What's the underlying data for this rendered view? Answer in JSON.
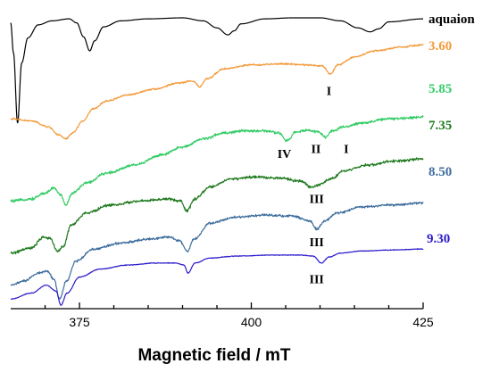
{
  "chart_data": {
    "type": "line",
    "title": "",
    "xlabel": "Magnetic field / mT",
    "ylabel": "",
    "xlim": [
      365,
      425
    ],
    "xticks": [
      375,
      400,
      425
    ],
    "grid": false,
    "legend": "none",
    "y_scale_note": "",
    "series": [
      {
        "name": "aquaion",
        "color": "#000000",
        "offset": 0,
        "noise": 0,
        "points": [
          [
            365,
            20
          ],
          [
            365.4,
            -10
          ],
          [
            366,
            -80
          ],
          [
            366.6,
            -20
          ],
          [
            367.5,
            5
          ],
          [
            369,
            18
          ],
          [
            371,
            22
          ],
          [
            373.5,
            24
          ],
          [
            374.6,
            20
          ],
          [
            375.6,
            6
          ],
          [
            376.5,
            -8
          ],
          [
            377.2,
            2
          ],
          [
            378.5,
            16
          ],
          [
            381,
            22
          ],
          [
            385,
            24
          ],
          [
            390,
            25
          ],
          [
            393,
            22
          ],
          [
            395,
            15
          ],
          [
            396.6,
            8
          ],
          [
            397.5,
            12
          ],
          [
            398.5,
            19
          ],
          [
            402,
            24
          ],
          [
            406,
            25
          ],
          [
            410,
            25
          ],
          [
            413,
            22
          ],
          [
            415.5,
            15
          ],
          [
            417.3,
            11
          ],
          [
            418.5,
            14
          ],
          [
            420,
            21
          ],
          [
            425,
            24
          ]
        ]
      },
      {
        "name": "3.60",
        "color": "#f39a3a",
        "offset": 0,
        "noise": 1.0,
        "points": [
          [
            365,
            -76
          ],
          [
            368,
            -78
          ],
          [
            370.5,
            -84
          ],
          [
            372,
            -92
          ],
          [
            373,
            -96
          ],
          [
            374,
            -90
          ],
          [
            375.5,
            -78
          ],
          [
            377,
            -66
          ],
          [
            379,
            -58
          ],
          [
            382,
            -52
          ],
          [
            386,
            -46
          ],
          [
            389.5,
            -40
          ],
          [
            391.5,
            -38
          ],
          [
            392.5,
            -44
          ],
          [
            393.5,
            -36
          ],
          [
            396,
            -26
          ],
          [
            400,
            -22
          ],
          [
            405,
            -21
          ],
          [
            408,
            -22
          ],
          [
            410.3,
            -23
          ],
          [
            411.5,
            -31
          ],
          [
            412.6,
            -22
          ],
          [
            415,
            -14
          ],
          [
            418,
            -8
          ],
          [
            422,
            -4
          ],
          [
            425,
            -2
          ]
        ]
      },
      {
        "name": "5.85",
        "color": "#33cc66",
        "offset": 0,
        "noise": 1.6,
        "points": [
          [
            365,
            -158
          ],
          [
            368,
            -156
          ],
          [
            370,
            -150
          ],
          [
            371.3,
            -145
          ],
          [
            372.3,
            -152
          ],
          [
            373,
            -162
          ],
          [
            374,
            -150
          ],
          [
            376,
            -140
          ],
          [
            379,
            -130
          ],
          [
            383,
            -122
          ],
          [
            387,
            -112
          ],
          [
            390,
            -104
          ],
          [
            393,
            -96
          ],
          [
            396,
            -90
          ],
          [
            399,
            -88
          ],
          [
            402,
            -88
          ],
          [
            404,
            -90
          ],
          [
            405.2,
            -98
          ],
          [
            406.5,
            -89
          ],
          [
            408,
            -87
          ],
          [
            409.8,
            -89
          ],
          [
            410.8,
            -94
          ],
          [
            411.8,
            -88
          ],
          [
            413.5,
            -84
          ],
          [
            416,
            -80
          ],
          [
            420,
            -76
          ],
          [
            425,
            -74
          ]
        ]
      },
      {
        "name": "7.35",
        "color": "#1f7a1f",
        "offset": 0,
        "noise": 1.6,
        "points": [
          [
            365,
            -210
          ],
          [
            368,
            -205
          ],
          [
            369.8,
            -194
          ],
          [
            370.8,
            -196
          ],
          [
            371.8,
            -208
          ],
          [
            372.6,
            -204
          ],
          [
            373.8,
            -182
          ],
          [
            376,
            -170
          ],
          [
            379.5,
            -162
          ],
          [
            384,
            -158
          ],
          [
            388,
            -156
          ],
          [
            389.7,
            -158
          ],
          [
            390.6,
            -168
          ],
          [
            391.8,
            -156
          ],
          [
            394,
            -144
          ],
          [
            397,
            -136
          ],
          [
            401,
            -134
          ],
          [
            404,
            -135
          ],
          [
            407,
            -138
          ],
          [
            408.8,
            -144
          ],
          [
            409.8,
            -142
          ],
          [
            411.5,
            -136
          ],
          [
            413.5,
            -128
          ],
          [
            417,
            -122
          ],
          [
            421,
            -118
          ],
          [
            425,
            -116
          ]
        ]
      },
      {
        "name": "8.50",
        "color": "#3e6e9e",
        "offset": 0,
        "noise": 1.4,
        "points": [
          [
            365,
            -242
          ],
          [
            367,
            -238
          ],
          [
            369,
            -230
          ],
          [
            370.3,
            -228
          ],
          [
            371.3,
            -236
          ],
          [
            372.1,
            -256
          ],
          [
            373.1,
            -238
          ],
          [
            374.5,
            -218
          ],
          [
            377,
            -206
          ],
          [
            381,
            -200
          ],
          [
            385,
            -196
          ],
          [
            388,
            -194
          ],
          [
            389.6,
            -198
          ],
          [
            390.7,
            -208
          ],
          [
            391.7,
            -196
          ],
          [
            394,
            -180
          ],
          [
            398,
            -174
          ],
          [
            402,
            -172
          ],
          [
            406,
            -173
          ],
          [
            408.5,
            -178
          ],
          [
            409.5,
            -186
          ],
          [
            410.7,
            -178
          ],
          [
            412.5,
            -170
          ],
          [
            416,
            -164
          ],
          [
            420,
            -162
          ],
          [
            425,
            -160
          ]
        ]
      },
      {
        "name": "9.30",
        "color": "#2b1bcc",
        "offset": 0,
        "noise": 0.4,
        "points": [
          [
            365,
            -256
          ],
          [
            368,
            -250
          ],
          [
            370.2,
            -242
          ],
          [
            371.6,
            -248
          ],
          [
            372.3,
            -262
          ],
          [
            373.2,
            -250
          ],
          [
            375,
            -234
          ],
          [
            378,
            -226
          ],
          [
            382,
            -222
          ],
          [
            386,
            -220
          ],
          [
            389,
            -220
          ],
          [
            390.2,
            -222
          ],
          [
            390.8,
            -230
          ],
          [
            391.8,
            -220
          ],
          [
            394,
            -215
          ],
          [
            398,
            -213
          ],
          [
            403,
            -212
          ],
          [
            407,
            -212
          ],
          [
            409,
            -213
          ],
          [
            410.2,
            -220
          ],
          [
            411.3,
            -214
          ],
          [
            413,
            -210
          ],
          [
            416,
            -208
          ],
          [
            420,
            -207
          ],
          [
            425,
            -206
          ]
        ]
      }
    ],
    "annotations": [
      {
        "text": "I",
        "x": 411.3,
        "y": -52
      },
      {
        "text": "IV",
        "x": 404.8,
        "y": -115
      },
      {
        "text": "II",
        "x": 409.4,
        "y": -110
      },
      {
        "text": "I",
        "x": 413.8,
        "y": -110
      },
      {
        "text": "III",
        "x": 409.5,
        "y": -160
      },
      {
        "text": "III",
        "x": 409.5,
        "y": -203
      },
      {
        "text": "III",
        "x": 409.5,
        "y": -240
      }
    ]
  }
}
